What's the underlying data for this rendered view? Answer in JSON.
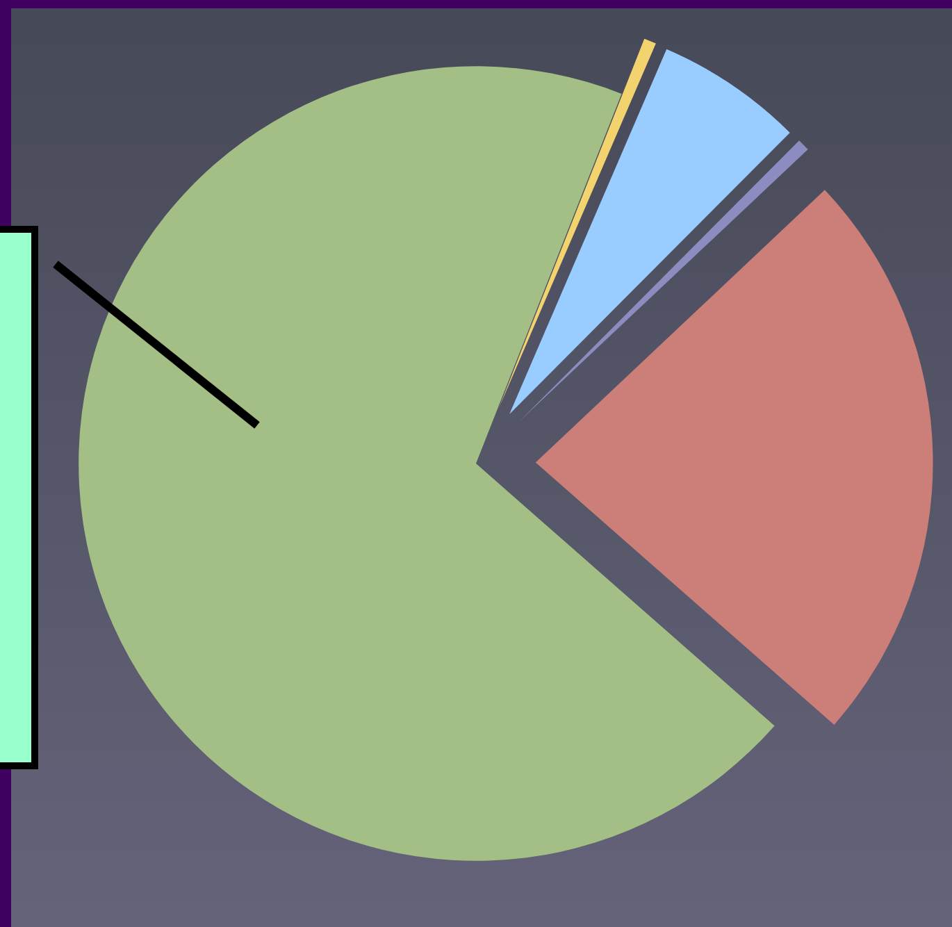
{
  "chart_data": {
    "type": "pie",
    "categories": [
      null,
      null,
      null,
      null,
      null
    ],
    "values": [
      0.5,
      6,
      0.5,
      23.5,
      69.5
    ],
    "colors": [
      "#f3d36e",
      "#99ccff",
      "#8c8cc0",
      "#cc7f78",
      "#a3bf85"
    ],
    "legend": false
  }
}
